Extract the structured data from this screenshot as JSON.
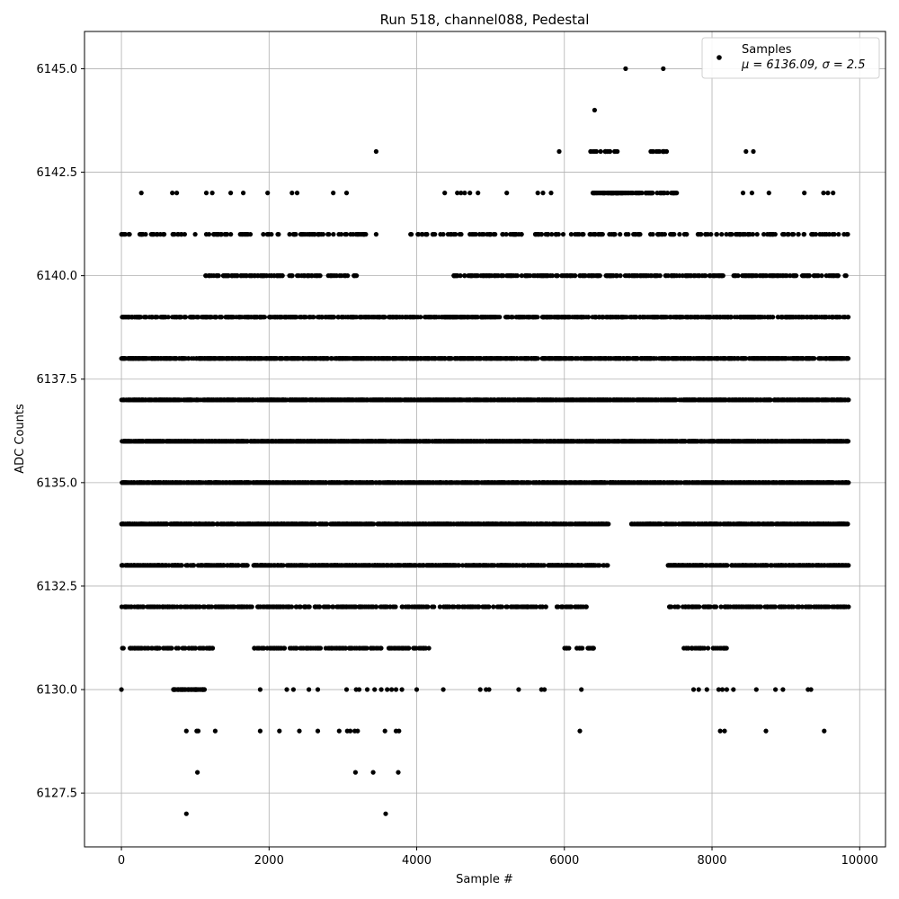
{
  "chart_data": {
    "type": "scatter",
    "title": "Run 518, channel088, Pedestal",
    "xlabel": "Sample #",
    "ylabel": "ADC Counts",
    "xlim": [
      -500,
      10350
    ],
    "ylim": [
      6126.2,
      6145.9
    ],
    "x_ticks": [
      0,
      2000,
      4000,
      6000,
      8000,
      10000
    ],
    "x_tick_labels": [
      "0",
      "2000",
      "4000",
      "6000",
      "8000",
      "10000"
    ],
    "y_ticks": [
      6127.5,
      6130.0,
      6132.5,
      6135.0,
      6137.5,
      6140.0,
      6142.5,
      6145.0
    ],
    "y_tick_labels": [
      "6127.5",
      "6130.0",
      "6132.5",
      "6135.0",
      "6137.5",
      "6140.0",
      "6142.5",
      "6145.0"
    ],
    "grid": true,
    "legend_position": "top-right",
    "marker_color": "#000000",
    "series": [
      {
        "name": "Samples",
        "legend_note": "μ = 6136.09, σ = 2.5",
        "points_count_approx": 10000,
        "x_range": [
          0,
          9850
        ],
        "level_distribution": [
          {
            "y": 6127,
            "count": 2,
            "segments": []
          },
          {
            "y": 6128,
            "count": 4,
            "segments": []
          },
          {
            "y": 6129,
            "count": 22,
            "segments": []
          },
          {
            "y": 6130,
            "count": 55,
            "segments": [
              [
                700,
                1150
              ]
            ]
          },
          {
            "y": 6131,
            "count": 260,
            "segments": [
              [
                0,
                1250
              ],
              [
                1800,
                4200
              ],
              [
                6000,
                6400
              ],
              [
                7600,
                8200
              ]
            ]
          },
          {
            "y": 6132,
            "count": 520,
            "segments": [
              [
                0,
                6300
              ],
              [
                7400,
                9850
              ]
            ]
          },
          {
            "y": 6133,
            "count": 900,
            "segments": [
              [
                0,
                6600
              ],
              [
                7400,
                9850
              ]
            ]
          },
          {
            "y": 6134,
            "count": 1300,
            "segments": [
              [
                0,
                6600
              ],
              [
                6900,
                9850
              ]
            ]
          },
          {
            "y": 6135,
            "count": 1650,
            "segments": [
              [
                0,
                9850
              ]
            ]
          },
          {
            "y": 6136,
            "count": 1750,
            "segments": [
              [
                0,
                9850
              ]
            ]
          },
          {
            "y": 6137,
            "count": 1700,
            "segments": [
              [
                0,
                9850
              ]
            ]
          },
          {
            "y": 6138,
            "count": 1250,
            "segments": [
              [
                0,
                9850
              ]
            ]
          },
          {
            "y": 6139,
            "count": 850,
            "segments": [
              [
                0,
                9850
              ]
            ]
          },
          {
            "y": 6140,
            "count": 420,
            "segments": [
              [
                1100,
                3200
              ],
              [
                4500,
                9850
              ]
            ]
          },
          {
            "y": 6141,
            "count": 300,
            "segments": [
              [
                0,
                1400
              ],
              [
                1400,
                3300
              ],
              [
                3900,
                9850
              ]
            ]
          },
          {
            "y": 6142,
            "count": 90,
            "segments": [
              [
                6380,
                7550
              ]
            ]
          },
          {
            "y": 6143,
            "count": 34,
            "segments": [
              [
                6350,
                6750
              ],
              [
                7100,
                7400
              ]
            ]
          },
          {
            "y": 6144,
            "count": 1,
            "segments": []
          },
          {
            "y": 6145,
            "count": 2,
            "segments": []
          }
        ],
        "sparse_points": [
          [
            880,
            6127
          ],
          [
            3580,
            6127
          ],
          [
            1030,
            6128
          ],
          [
            3170,
            6128
          ],
          [
            3410,
            6128
          ],
          [
            3750,
            6128
          ],
          [
            880,
            6129
          ],
          [
            1020,
            6129
          ],
          [
            1040,
            6129
          ],
          [
            1270,
            6129
          ],
          [
            1880,
            6129
          ],
          [
            2140,
            6129
          ],
          [
            2410,
            6129
          ],
          [
            2660,
            6129
          ],
          [
            2950,
            6129
          ],
          [
            3060,
            6129
          ],
          [
            3100,
            6129
          ],
          [
            3160,
            6129
          ],
          [
            3200,
            6129
          ],
          [
            3570,
            6129
          ],
          [
            3720,
            6129
          ],
          [
            3760,
            6129
          ],
          [
            6210,
            6129
          ],
          [
            8110,
            6129
          ],
          [
            8170,
            6129
          ],
          [
            8730,
            6129
          ],
          [
            9520,
            6129
          ],
          [
            6830,
            6145
          ],
          [
            7340,
            6145
          ],
          [
            6410,
            6144
          ],
          [
            3450,
            6143
          ],
          [
            5930,
            6143
          ],
          [
            8460,
            6143
          ],
          [
            8560,
            6143
          ],
          [
            270,
            6142
          ],
          [
            690,
            6142
          ],
          [
            750,
            6142
          ],
          [
            1150,
            6142
          ],
          [
            1230,
            6142
          ],
          [
            1480,
            6142
          ],
          [
            1650,
            6142
          ],
          [
            1980,
            6142
          ],
          [
            2310,
            6142
          ],
          [
            2380,
            6142
          ],
          [
            2870,
            6142
          ],
          [
            3050,
            6142
          ],
          [
            4380,
            6142
          ],
          [
            4550,
            6142
          ],
          [
            4600,
            6142
          ],
          [
            4650,
            6142
          ],
          [
            4720,
            6142
          ],
          [
            4830,
            6142
          ],
          [
            5220,
            6142
          ],
          [
            5640,
            6142
          ],
          [
            5710,
            6142
          ],
          [
            5820,
            6142
          ],
          [
            8420,
            6142
          ],
          [
            8540,
            6142
          ],
          [
            8770,
            6142
          ],
          [
            9250,
            6142
          ],
          [
            9510,
            6142
          ],
          [
            9570,
            6142
          ],
          [
            9640,
            6142
          ],
          [
            0,
            6130
          ],
          [
            1880,
            6130
          ],
          [
            2240,
            6130
          ],
          [
            2330,
            6130
          ],
          [
            2540,
            6130
          ],
          [
            2660,
            6130
          ],
          [
            3050,
            6130
          ],
          [
            3180,
            6130
          ],
          [
            3220,
            6130
          ],
          [
            3330,
            6130
          ],
          [
            3430,
            6130
          ],
          [
            3520,
            6130
          ],
          [
            3600,
            6130
          ],
          [
            3660,
            6130
          ],
          [
            3720,
            6130
          ],
          [
            3800,
            6130
          ],
          [
            4000,
            6130
          ],
          [
            4360,
            6130
          ],
          [
            4860,
            6130
          ],
          [
            4940,
            6130
          ],
          [
            4980,
            6130
          ],
          [
            5380,
            6130
          ],
          [
            5690,
            6130
          ],
          [
            5730,
            6130
          ],
          [
            6230,
            6130
          ],
          [
            7750,
            6130
          ],
          [
            7820,
            6130
          ],
          [
            7930,
            6130
          ],
          [
            8090,
            6130
          ],
          [
            8140,
            6130
          ],
          [
            8200,
            6130
          ],
          [
            8290,
            6130
          ],
          [
            8600,
            6130
          ],
          [
            8860,
            6130
          ],
          [
            8960,
            6130
          ],
          [
            9300,
            6130
          ],
          [
            9340,
            6130
          ],
          [
            0,
            6141
          ],
          [
            110,
            6141
          ],
          [
            700,
            6141
          ],
          [
            3310,
            6141
          ],
          [
            3450,
            6141
          ],
          [
            5780,
            6141
          ]
        ]
      }
    ]
  }
}
